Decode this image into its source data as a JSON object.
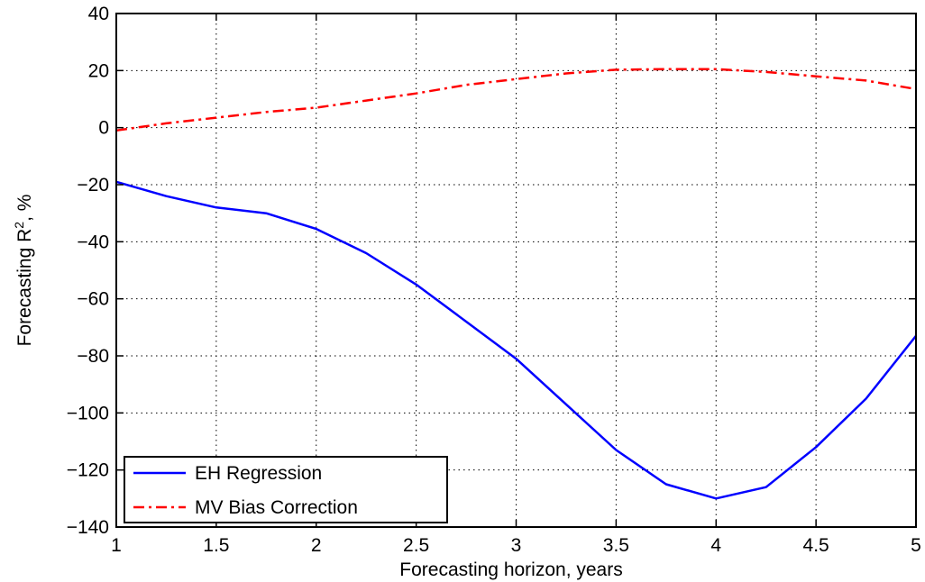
{
  "chart_data": {
    "type": "line",
    "xlabel": "Forecasting horizon, years",
    "ylabel": "Forecasting R",
    "ylabel_sup": "2",
    "ylabel_suffix": ", %",
    "xlim": [
      1,
      5
    ],
    "ylim": [
      -140,
      40
    ],
    "xticks": [
      1,
      1.5,
      2,
      2.5,
      3,
      3.5,
      4,
      4.5,
      5
    ],
    "xtick_labels": [
      "1",
      "1.5",
      "2",
      "2.5",
      "3",
      "3.5",
      "4",
      "4.5",
      "5"
    ],
    "yticks": [
      -140,
      -120,
      -100,
      -80,
      -60,
      -40,
      -20,
      0,
      20,
      40
    ],
    "ytick_labels": [
      "−140",
      "−120",
      "−100",
      "−80",
      "−60",
      "−40",
      "−20",
      "0",
      "20",
      "40"
    ],
    "grid": true,
    "legend_position": "bottom-left",
    "x": [
      1,
      1.25,
      1.5,
      1.75,
      2,
      2.25,
      2.5,
      2.75,
      3,
      3.25,
      3.5,
      3.75,
      4,
      4.25,
      4.5,
      4.75,
      5
    ],
    "series": [
      {
        "name": "EH Regression",
        "color": "#0000ff",
        "style": "solid",
        "values": [
          -19,
          -24,
          -28,
          -30,
          -35.5,
          -44,
          -55,
          -68,
          -81,
          -97,
          -113,
          -125,
          -130,
          -126,
          -112,
          -95,
          -73
        ]
      },
      {
        "name": "MV Bias Correction",
        "color": "#ff0000",
        "style": "dashdot",
        "values": [
          -1,
          1.5,
          3.5,
          5.5,
          7,
          9.5,
          12,
          15,
          17,
          19,
          20.3,
          20.5,
          20.5,
          19.5,
          18,
          16.5,
          13.5
        ]
      }
    ]
  }
}
